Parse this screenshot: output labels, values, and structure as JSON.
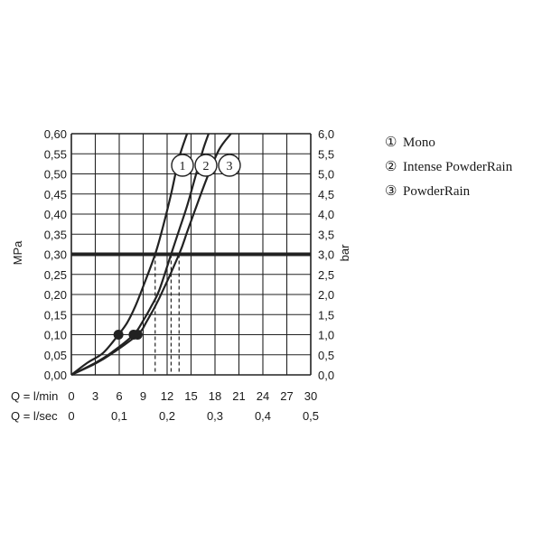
{
  "chart_data": {
    "type": "line",
    "y_left": {
      "label": "MPa",
      "ticks": [
        "0,00",
        "0,05",
        "0,10",
        "0,15",
        "0,20",
        "0,25",
        "0,30",
        "0,35",
        "0,40",
        "0,45",
        "0,50",
        "0,55",
        "0,60"
      ],
      "range": [
        0,
        0.6
      ]
    },
    "y_right": {
      "label": "bar",
      "ticks": [
        "0,0",
        "0,5",
        "1,0",
        "1,5",
        "2,0",
        "2,5",
        "3,0",
        "3,5",
        "4,0",
        "4,5",
        "5,0",
        "5,5",
        "6,0"
      ],
      "range": [
        0,
        6
      ]
    },
    "x_flow_min": {
      "label": "Q = l/min",
      "ticks": [
        "0",
        "3",
        "6",
        "9",
        "12",
        "15",
        "18",
        "21",
        "24",
        "27",
        "30"
      ],
      "range": [
        0,
        30
      ]
    },
    "x_flow_sec": {
      "label": "Q = l/sec",
      "ticks": [
        "0",
        "0,1",
        "0,2",
        "0,3",
        "0,4",
        "0,5"
      ]
    },
    "grid": true,
    "reference_line": {
      "pressure_bar": 3.0
    },
    "series": [
      {
        "name": "Mono",
        "marker": "1",
        "points": [
          [
            0,
            0
          ],
          [
            2,
            0.3
          ],
          [
            4,
            0.55
          ],
          [
            5.9,
            1.0
          ],
          [
            7,
            1.3
          ],
          [
            8,
            1.7
          ],
          [
            9,
            2.2
          ],
          [
            10.5,
            3.0
          ],
          [
            11.5,
            3.7
          ],
          [
            12.5,
            4.5
          ],
          [
            13.5,
            5.4
          ],
          [
            14.5,
            6.0
          ]
        ],
        "min_pressure_point": [
          5.9,
          1.0
        ],
        "flow_at_3bar": 10.5
      },
      {
        "name": "Intense PowderRain",
        "marker": "2",
        "points": [
          [
            0,
            0
          ],
          [
            3,
            0.3
          ],
          [
            5,
            0.55
          ],
          [
            7.8,
            1.0
          ],
          [
            9,
            1.35
          ],
          [
            10,
            1.7
          ],
          [
            11,
            2.1
          ],
          [
            12.5,
            3.0
          ],
          [
            13.5,
            3.6
          ],
          [
            14.5,
            4.2
          ],
          [
            15.5,
            4.9
          ],
          [
            16.5,
            5.6
          ],
          [
            17.2,
            6.0
          ]
        ],
        "min_pressure_point": [
          7.8,
          1.0
        ],
        "flow_at_3bar": 12.5
      },
      {
        "name": "PowderRain",
        "marker": "3",
        "points": [
          [
            0,
            0
          ],
          [
            3,
            0.28
          ],
          [
            5,
            0.52
          ],
          [
            8.3,
            1.0
          ],
          [
            9.5,
            1.35
          ],
          [
            11,
            1.9
          ],
          [
            13.5,
            3.0
          ],
          [
            14.5,
            3.55
          ],
          [
            15.5,
            4.1
          ],
          [
            17,
            4.9
          ],
          [
            18.5,
            5.6
          ],
          [
            20,
            6.0
          ]
        ],
        "min_pressure_point": [
          8.3,
          1.0
        ],
        "flow_at_3bar": 13.5
      }
    ],
    "legend": {
      "placement": "right",
      "entries": [
        {
          "symbol": "①",
          "label": "Mono"
        },
        {
          "symbol": "②",
          "label": "Intense PowderRain"
        },
        {
          "symbol": "③",
          "label": "PowderRain"
        }
      ]
    },
    "curve_markers": [
      "1",
      "2",
      "3"
    ]
  }
}
